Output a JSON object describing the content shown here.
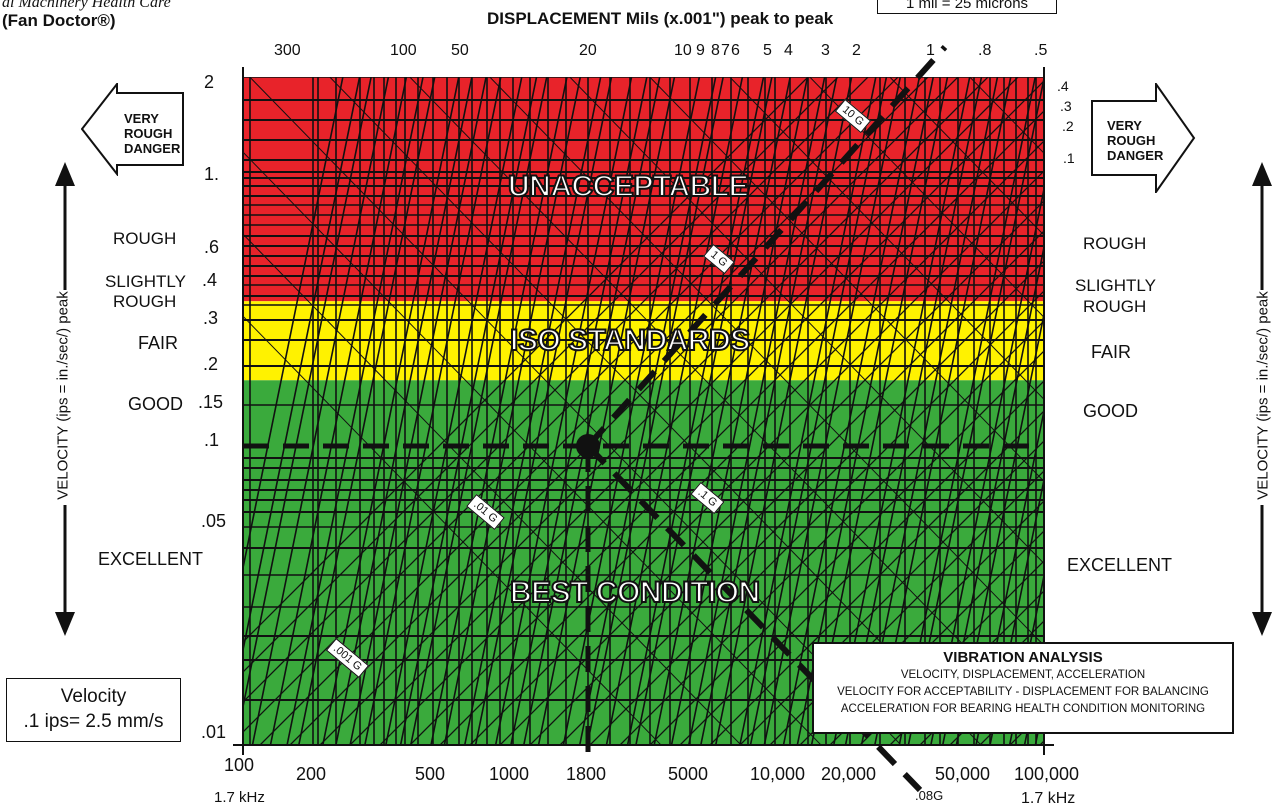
{
  "header": {
    "company_line": "al Machinery Health Care",
    "brand": "(Fan Doctor®)",
    "top_box": "1 mil = 25 microns"
  },
  "chart_data": {
    "type": "nomograph",
    "title": "DISPLACEMENT Mils (x.001\") peak to peak",
    "xlabel": "",
    "ylabel": "VELOCITY (ips = in./sec/) peak",
    "x_scale": "log",
    "y_scale": "log",
    "xlim": [
      100,
      100000
    ],
    "ylim": [
      0.01,
      2
    ],
    "x_ticks": [
      100,
      200,
      500,
      1000,
      1800,
      5000,
      10000,
      20000,
      50000,
      100000
    ],
    "x_tick_labels": [
      "100",
      "200",
      "500",
      "1000",
      "1800",
      "5000",
      "10,000",
      "20,000",
      "50,000",
      "100,000"
    ],
    "x_sub_labels": {
      "left": "1.7 kHz",
      "right": "1.7 kHz"
    },
    "y_ticks": [
      2,
      1,
      0.6,
      0.4,
      0.3,
      0.2,
      0.15,
      0.1,
      0.05,
      0.01
    ],
    "y_tick_labels": [
      "2",
      "1.",
      ".6",
      ".4",
      ".3",
      ".2",
      ".15",
      ".1",
      ".05",
      ".01"
    ],
    "displacement_ticks": [
      "300",
      "100",
      "50",
      "20",
      "10",
      "9",
      "8",
      "7",
      "6",
      "5",
      "4",
      "3",
      "2",
      "1",
      ".8",
      ".5"
    ],
    "right_small_ticks": [
      ".4",
      ".3",
      ".2",
      ".1"
    ],
    "zones": [
      {
        "name": "UNACCEPTABLE",
        "from": 0.35,
        "to": 2,
        "color": "#e8232a"
      },
      {
        "name": "ISO STANDARDS",
        "from": 0.18,
        "to": 0.35,
        "color": "#fff200"
      },
      {
        "name": "BEST CONDITION",
        "from": 0.01,
        "to": 0.18,
        "color": "#3aaa3c"
      }
    ],
    "condition_labels_left": [
      {
        "text": "ROUGH",
        "y": 0.6
      },
      {
        "text": "SLIGHTLY",
        "y": 0.42
      },
      {
        "text": "ROUGH",
        "y": 0.34
      },
      {
        "text": "FAIR",
        "y": 0.24
      },
      {
        "text": "GOOD",
        "y": 0.15
      },
      {
        "text": "EXCELLENT",
        "y": 0.035
      }
    ],
    "condition_labels_right": [
      {
        "text": "ROUGH",
        "y": 0.58
      },
      {
        "text": "SLIGHTLY",
        "y": 0.4
      },
      {
        "text": "ROUGH",
        "y": 0.33
      },
      {
        "text": "FAIR",
        "y": 0.23
      },
      {
        "text": "GOOD",
        "y": 0.145
      },
      {
        "text": "EXCELLENT",
        "y": 0.034
      }
    ],
    "acceleration_labels": [
      ".001 G",
      ".01 G",
      ".1 G",
      "1 G",
      "10 G",
      ".08G"
    ],
    "reference_point": {
      "x": 1800,
      "y": 0.1
    },
    "reference_lines": {
      "horizontal_y": 0.1,
      "vertical_x": 1800
    }
  },
  "left_arrow": {
    "line1": "VERY",
    "line2": "ROUGH",
    "line3": "DANGER"
  },
  "right_arrow": {
    "line1": "VERY",
    "line2": "ROUGH",
    "line3": "DANGER"
  },
  "velocity_box": {
    "line1": "Velocity",
    "line2": ".1 ips= 2.5 mm/s"
  },
  "info_box": {
    "title": "VIBRATION ANALYSIS",
    "line1": "VELOCITY, DISPLACEMENT, ACCELERATION",
    "line2": "VELOCITY FOR ACCEPTABILITY - DISPLACEMENT FOR BALANCING",
    "line3": "ACCELERATION FOR BEARING HEALTH CONDITION MONITORING"
  },
  "colors": {
    "red": "#e8232a",
    "yellow": "#fff200",
    "green": "#3aaa3c"
  }
}
